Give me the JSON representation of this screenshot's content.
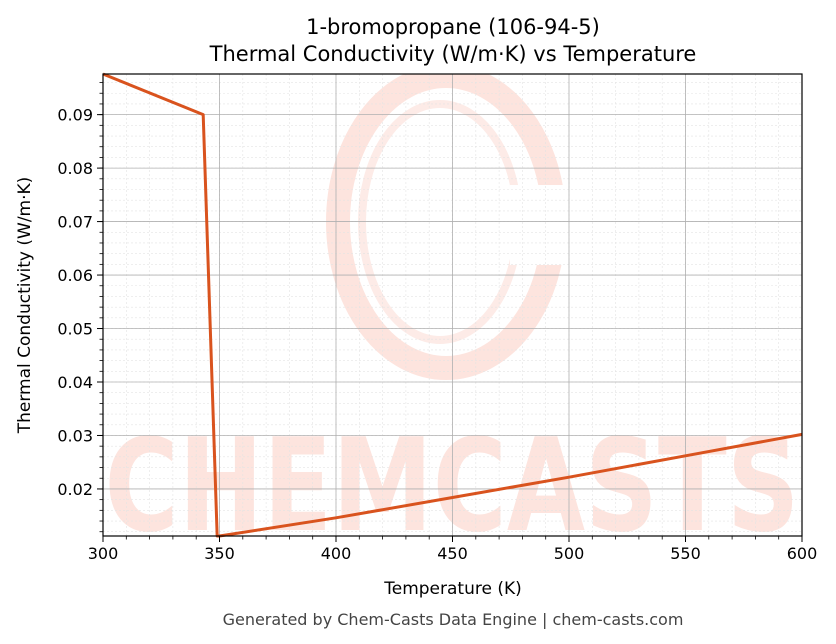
{
  "chart_data": {
    "type": "line",
    "title": "1-bromopropane (106-94-5)",
    "subtitle": "Thermal Conductivity (W/m·K) vs Temperature",
    "xlabel": "Temperature (K)",
    "ylabel": "Thermal Conductivity (W/m·K)",
    "xlim": [
      300,
      600
    ],
    "ylim": [
      0.0112,
      0.0976
    ],
    "xticks": [
      300,
      350,
      400,
      450,
      500,
      550,
      600
    ],
    "yticks": [
      0.02,
      0.03,
      0.04,
      0.05,
      0.06,
      0.07,
      0.08,
      0.09
    ],
    "ytick_labels": [
      "0.02",
      "0.03",
      "0.04",
      "0.05",
      "0.06",
      "0.07",
      "0.08",
      "0.09"
    ],
    "grid": true,
    "series": [
      {
        "color": "#d9531e",
        "x": [
          300,
          343,
          349,
          350,
          400,
          450,
          500,
          550,
          600
        ],
        "y": [
          0.0976,
          0.09,
          0.0112,
          0.0112,
          0.0146,
          0.0184,
          0.0222,
          0.0262,
          0.0302
        ]
      }
    ]
  },
  "watermark": {
    "text": "CHEMCASTS"
  },
  "footer": {
    "text": "Generated by Chem-Casts Data Engine | chem-casts.com"
  }
}
